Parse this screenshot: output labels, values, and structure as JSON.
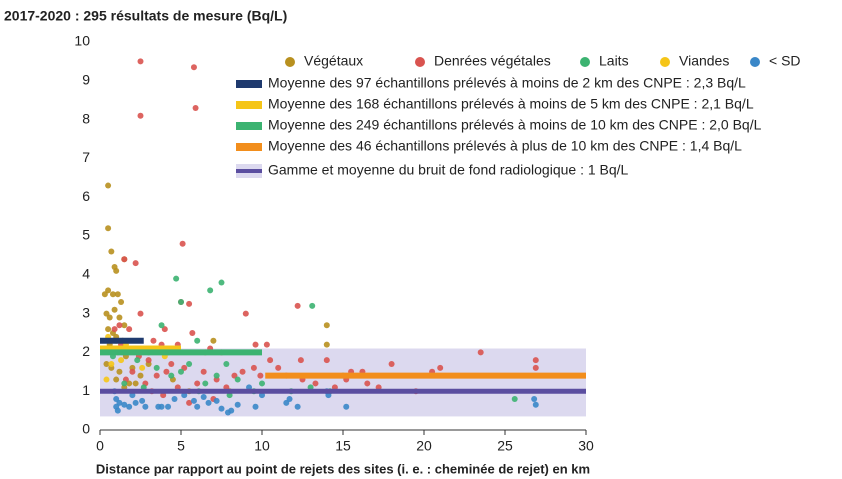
{
  "chart_data": {
    "type": "scatter",
    "title": "2017-2020 : 295 résultats de mesure (Bq/L)",
    "x_label": "Distance par rapport au point de rejets des sites (i. e. : cheminée de rejet) en km",
    "xlim": [
      0,
      30
    ],
    "xticks": [
      0,
      5,
      10,
      15,
      20,
      25,
      30
    ],
    "ylim": [
      0,
      10
    ],
    "yticks": [
      0,
      1,
      2,
      3,
      4,
      5,
      6,
      7,
      8,
      9,
      10
    ],
    "series": [
      {
        "name": "Végétaux",
        "color": "#b8901f",
        "x": [
          0.5,
          0.5,
          0.7,
          0.9,
          1.0,
          0.3,
          0.5,
          0.8,
          1.1,
          1.3,
          0.4,
          0.6,
          0.9,
          1.2,
          1.5,
          0.5,
          0.8,
          1.0,
          1.4,
          0.6,
          1.1,
          1.6,
          0.7,
          1.2,
          2.0,
          1.0,
          1.8,
          2.5,
          3.0,
          1.5,
          14,
          14,
          7,
          6.5,
          4.5,
          8,
          5.5,
          2.2,
          1.5,
          0.4
        ],
        "values": [
          6.3,
          5.2,
          4.6,
          4.2,
          4.1,
          3.5,
          3.6,
          3.5,
          3.5,
          3.3,
          3.0,
          2.9,
          3.1,
          2.9,
          2.7,
          2.6,
          2.5,
          2.4,
          2.3,
          2.2,
          2.0,
          1.9,
          1.6,
          1.5,
          1.6,
          1.3,
          1.2,
          1.4,
          1.7,
          4.4,
          2.7,
          2.2,
          2.3,
          2.0,
          1.3,
          1.0,
          1.0,
          1.2,
          1.1,
          1.7
        ]
      },
      {
        "name": "Denrées végétales",
        "color": "#d9534f",
        "x": [
          2.5,
          5.8,
          2.5,
          5.9,
          5.1,
          2.2,
          1.5,
          2.5,
          5.0,
          5.5,
          9,
          12.2,
          4.0,
          5.7,
          1.2,
          1.8,
          3.3,
          3.8,
          4.8,
          6.8,
          7.5,
          9.6,
          10.3,
          12.4,
          14,
          15.5,
          16.2,
          18,
          20.5,
          21,
          23.5,
          26.9,
          26.9,
          11,
          10.5,
          9.5,
          8.3,
          7.2,
          6.4,
          5.2,
          4.4,
          3.5,
          2.8,
          2.0,
          1.6,
          3.2,
          4.8,
          6.0,
          7.8,
          8.8,
          9.9,
          11.5,
          12.5,
          13.3,
          14.5,
          15.2,
          16.5,
          17.2,
          19.5,
          3.9,
          5.5,
          7.0,
          2.4,
          3.0,
          4.1,
          1.3,
          0.9,
          1.4
        ],
        "values": [
          9.5,
          9.35,
          8.1,
          8.3,
          4.8,
          4.3,
          4.4,
          3.0,
          3.3,
          3.25,
          3.0,
          3.2,
          2.6,
          2.5,
          2.7,
          2.6,
          2.3,
          2.2,
          2.2,
          2.1,
          2.0,
          2.2,
          2.2,
          1.8,
          1.8,
          1.5,
          1.5,
          1.7,
          1.5,
          1.6,
          2.0,
          1.8,
          1.6,
          1.6,
          1.8,
          1.6,
          1.4,
          1.3,
          1.5,
          1.6,
          1.7,
          1.4,
          1.2,
          1.5,
          1.3,
          1.0,
          1.1,
          1.2,
          1.1,
          1.5,
          1.4,
          1.4,
          1.3,
          1.2,
          1.1,
          1.3,
          1.2,
          1.1,
          1.0,
          0.9,
          0.7,
          0.8,
          1.9,
          1.8,
          1.5,
          2.2,
          2.6,
          2.0
        ]
      },
      {
        "name": "Laits",
        "color": "#3cb371",
        "x": [
          4.7,
          5.0,
          6.8,
          7.5,
          13.1,
          3.8,
          6.0,
          4.2,
          2.3,
          3.0,
          5.5,
          7.8,
          7.2,
          6.5,
          5.0,
          3.5,
          4.4,
          8.5,
          9.5,
          10,
          13,
          14.2,
          1.5,
          2.7,
          6.1,
          8.0,
          25.6,
          11.8,
          15,
          0.8
        ],
        "values": [
          3.9,
          3.3,
          3.6,
          3.8,
          3.2,
          2.7,
          2.3,
          2.0,
          1.8,
          2.0,
          1.7,
          1.7,
          1.4,
          1.2,
          1.5,
          1.6,
          1.4,
          1.3,
          1.0,
          1.2,
          1.1,
          1.0,
          1.2,
          1.1,
          1.0,
          0.9,
          0.8,
          1.0,
          1.4,
          1.9
        ]
      },
      {
        "name": "Viandes",
        "color": "#f5c518",
        "x": [
          0.5,
          1.0,
          1.6,
          2.1,
          3.5,
          0.7,
          1.3,
          2.6,
          4.0,
          0.4
        ],
        "values": [
          2.4,
          2.3,
          2.2,
          2.1,
          2.1,
          1.7,
          1.8,
          1.6,
          1.9,
          1.3
        ]
      },
      {
        "name": "< SD",
        "color": "#3a87c8",
        "x": [
          1.0,
          1.0,
          1.1,
          1.2,
          1.5,
          1.8,
          2.2,
          2.6,
          2.8,
          3.6,
          3.8,
          4.2,
          4.6,
          5.2,
          5.8,
          6.0,
          6.7,
          7.2,
          7.5,
          7.9,
          8.1,
          8.5,
          9.6,
          10,
          11.5,
          11.7,
          12.2,
          14.0,
          14.1,
          15.2,
          26.8,
          26.9,
          0.9,
          2.0,
          9.2,
          6.4
        ],
        "values": [
          0.8,
          0.6,
          0.5,
          0.7,
          0.65,
          0.6,
          0.7,
          0.75,
          0.6,
          0.6,
          0.6,
          0.6,
          0.8,
          0.9,
          0.75,
          0.6,
          0.7,
          0.75,
          0.55,
          0.45,
          0.5,
          0.65,
          0.6,
          0.9,
          0.7,
          0.8,
          0.6,
          1.0,
          0.9,
          0.6,
          0.8,
          0.65,
          1.0,
          0.9,
          1.1,
          0.85
        ]
      }
    ],
    "mean_lines": [
      {
        "name": "Moyenne des 97 échantillons prélevés à moins de 2 km des CNPE : 2,3 Bq/L",
        "color": "#1f3a6e",
        "x": [
          0,
          2.7
        ],
        "value": 2.3
      },
      {
        "name": "Moyenne des 168 échantillons prélevés à moins de 5 km des CNPE : 2,1 Bq/L",
        "color": "#f5c518",
        "x": [
          0,
          5
        ],
        "value": 2.1
      },
      {
        "name": "Moyenne des 249 échantillons prélevés à moins de 10 km des CNPE : 2,0 Bq/L",
        "color": "#3cb371",
        "x": [
          0,
          10
        ],
        "value": 2.0
      },
      {
        "name": "Moyenne des 46 échantillons prélevés à plus de 10 km des CNPE : 1,4 Bq/L",
        "color": "#f28e1c",
        "x": [
          10.2,
          30
        ],
        "value": 1.4
      }
    ],
    "background_band": {
      "name": "Gamme et moyenne du bruit de fond radiologique : 1 Bq/L",
      "color": "#dcd9ef",
      "line_color": "#5b4ea0",
      "x": [
        0,
        30
      ],
      "range": [
        0.35,
        2.1
      ],
      "value": 1
    }
  }
}
